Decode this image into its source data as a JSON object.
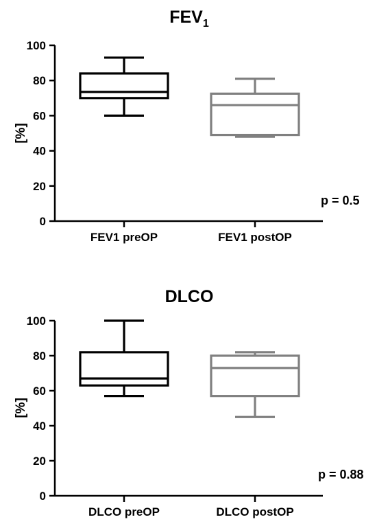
{
  "chart_data": [
    {
      "type": "box",
      "title": "FEV",
      "title_subscript": "1",
      "ylabel": "[%]",
      "ylim": [
        0,
        100
      ],
      "yticks": [
        "0",
        "20",
        "40",
        "60",
        "80",
        "100"
      ],
      "categories": [
        "FEV1 preOP",
        "FEV1 postOP"
      ],
      "boxes": [
        {
          "min": 60,
          "q1": 70,
          "median": 73.5,
          "q3": 84,
          "max": 93,
          "color": "#000000"
        },
        {
          "min": 48,
          "q1": 49,
          "median": 66,
          "q3": 72.5,
          "max": 81,
          "color": "#808080"
        }
      ],
      "annotation": "p = 0.5"
    },
    {
      "type": "box",
      "title": "DLCO",
      "title_subscript": "",
      "ylabel": "[%]",
      "ylim": [
        0,
        100
      ],
      "yticks": [
        "0",
        "20",
        "40",
        "60",
        "80",
        "100"
      ],
      "categories": [
        "DLCO preOP",
        "DLCO postOP"
      ],
      "boxes": [
        {
          "min": 57,
          "q1": 63,
          "median": 67,
          "q3": 82,
          "max": 100,
          "color": "#000000"
        },
        {
          "min": 45,
          "q1": 57,
          "median": 73,
          "q3": 80,
          "max": 82,
          "color": "#808080"
        }
      ],
      "annotation": "p = 0.88"
    }
  ]
}
